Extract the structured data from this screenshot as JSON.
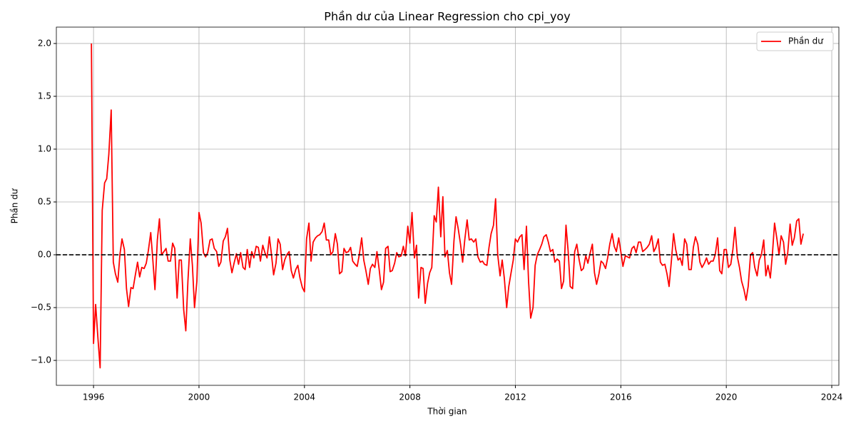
{
  "chart_data": {
    "type": "line",
    "title": "Phần dư của Linear Regression cho cpi_yoy",
    "xlabel": "Thời gian",
    "ylabel": "Phần dư",
    "x": [
      1995.92,
      1996,
      1996.08,
      1996.17,
      1996.25,
      1996.33,
      1996.42,
      1996.5,
      1996.58,
      1996.67,
      1996.75,
      1996.83,
      1996.92,
      1997,
      1997.08,
      1997.17,
      1997.25,
      1997.33,
      1997.42,
      1997.5,
      1997.58,
      1997.67,
      1997.75,
      1997.83,
      1997.92,
      1998,
      1998.08,
      1998.17,
      1998.25,
      1998.33,
      1998.42,
      1998.5,
      1998.58,
      1998.67,
      1998.75,
      1998.83,
      1998.92,
      1999,
      1999.08,
      1999.17,
      1999.25,
      1999.33,
      1999.42,
      1999.5,
      1999.58,
      1999.67,
      1999.75,
      1999.83,
      1999.92,
      2000,
      2000.08,
      2000.17,
      2000.25,
      2000.33,
      2000.42,
      2000.5,
      2000.58,
      2000.67,
      2000.75,
      2000.83,
      2000.92,
      2001,
      2001.08,
      2001.17,
      2001.25,
      2001.33,
      2001.42,
      2001.5,
      2001.58,
      2001.67,
      2001.75,
      2001.83,
      2001.92,
      2002,
      2002.08,
      2002.17,
      2002.25,
      2002.33,
      2002.42,
      2002.5,
      2002.58,
      2002.67,
      2002.75,
      2002.83,
      2002.92,
      2003,
      2003.08,
      2003.17,
      2003.25,
      2003.33,
      2003.42,
      2003.5,
      2003.58,
      2003.67,
      2003.75,
      2003.83,
      2003.92,
      2004,
      2004.08,
      2004.17,
      2004.25,
      2004.33,
      2004.42,
      2004.5,
      2004.58,
      2004.67,
      2004.75,
      2004.83,
      2004.92,
      2005,
      2005.08,
      2005.17,
      2005.25,
      2005.33,
      2005.42,
      2005.5,
      2005.58,
      2005.67,
      2005.75,
      2005.83,
      2005.92,
      2006,
      2006.08,
      2006.17,
      2006.25,
      2006.33,
      2006.42,
      2006.5,
      2006.58,
      2006.67,
      2006.75,
      2006.83,
      2006.92,
      2007,
      2007.08,
      2007.17,
      2007.25,
      2007.33,
      2007.42,
      2007.5,
      2007.58,
      2007.67,
      2007.75,
      2007.83,
      2007.92,
      2008,
      2008.08,
      2008.17,
      2008.25,
      2008.33,
      2008.42,
      2008.5,
      2008.58,
      2008.67,
      2008.75,
      2008.83,
      2008.92,
      2009,
      2009.08,
      2009.17,
      2009.25,
      2009.33,
      2009.42,
      2009.5,
      2009.58,
      2009.67,
      2009.75,
      2009.83,
      2009.92,
      2010,
      2010.08,
      2010.17,
      2010.25,
      2010.33,
      2010.42,
      2010.5,
      2010.58,
      2010.67,
      2010.75,
      2010.83,
      2010.92,
      2011,
      2011.08,
      2011.17,
      2011.25,
      2011.33,
      2011.42,
      2011.5,
      2011.58,
      2011.67,
      2011.75,
      2011.83,
      2011.92,
      2012,
      2012.08,
      2012.17,
      2012.25,
      2012.33,
      2012.42,
      2012.5,
      2012.58,
      2012.67,
      2012.75,
      2012.83,
      2012.92,
      2013,
      2013.08,
      2013.17,
      2013.25,
      2013.33,
      2013.42,
      2013.5,
      2013.58,
      2013.67,
      2013.75,
      2013.83,
      2013.92,
      2014,
      2014.08,
      2014.17,
      2014.25,
      2014.33,
      2014.42,
      2014.5,
      2014.58,
      2014.67,
      2014.75,
      2014.83,
      2014.92,
      2015,
      2015.08,
      2015.17,
      2015.25,
      2015.33,
      2015.42,
      2015.5,
      2015.58,
      2015.67,
      2015.75,
      2015.83,
      2015.92,
      2016,
      2016.08,
      2016.17,
      2016.25,
      2016.33,
      2016.42,
      2016.5,
      2016.58,
      2016.67,
      2016.75,
      2016.83,
      2016.92,
      2017,
      2017.08,
      2017.17,
      2017.25,
      2017.33,
      2017.42,
      2017.5,
      2017.58,
      2017.67,
      2017.75,
      2017.83,
      2017.92,
      2018,
      2018.08,
      2018.17,
      2018.25,
      2018.33,
      2018.42,
      2018.5,
      2018.58,
      2018.67,
      2018.75,
      2018.83,
      2018.92,
      2019,
      2019.08,
      2019.17,
      2019.25,
      2019.33,
      2019.42,
      2019.5,
      2019.58,
      2019.67,
      2019.75,
      2019.83,
      2019.92,
      2020,
      2020.08,
      2020.17,
      2020.25,
      2020.33,
      2020.42,
      2020.5,
      2020.58,
      2020.67,
      2020.75,
      2020.83,
      2020.92,
      2021,
      2021.08,
      2021.17,
      2021.25,
      2021.33,
      2021.42,
      2021.5,
      2021.58,
      2021.67,
      2021.75,
      2021.83,
      2021.92,
      2022,
      2022.08,
      2022.17,
      2022.25,
      2022.33,
      2022.42,
      2022.5,
      2022.58,
      2022.67,
      2022.75,
      2022.83,
      2022.92
    ],
    "series": [
      {
        "name": "Phần dư",
        "color": "#ff0000",
        "values": [
          2.0,
          -0.84,
          -0.47,
          -0.8,
          -1.07,
          0.42,
          0.68,
          0.72,
          0.95,
          1.37,
          -0.07,
          -0.18,
          -0.26,
          0.0,
          0.15,
          0.05,
          -0.32,
          -0.49,
          -0.31,
          -0.32,
          -0.2,
          -0.07,
          -0.21,
          -0.12,
          -0.13,
          -0.08,
          0.04,
          0.21,
          -0.05,
          -0.33,
          0.14,
          0.34,
          0.0,
          0.03,
          0.06,
          -0.06,
          -0.06,
          0.11,
          0.06,
          -0.41,
          -0.05,
          -0.05,
          -0.52,
          -0.72,
          -0.25,
          0.15,
          -0.1,
          -0.5,
          -0.25,
          0.4,
          0.3,
          0.02,
          -0.02,
          0.02,
          0.14,
          0.15,
          0.06,
          0.03,
          -0.11,
          -0.07,
          0.13,
          0.17,
          0.25,
          -0.05,
          -0.17,
          -0.08,
          0.01,
          -0.09,
          0.02,
          -0.12,
          -0.14,
          0.05,
          -0.12,
          0.03,
          -0.03,
          0.08,
          0.07,
          -0.06,
          0.09,
          0.02,
          -0.03,
          0.17,
          0.0,
          -0.19,
          -0.08,
          0.15,
          0.1,
          -0.14,
          -0.05,
          0.0,
          0.03,
          -0.15,
          -0.22,
          -0.14,
          -0.1,
          -0.22,
          -0.31,
          -0.35,
          0.15,
          0.3,
          -0.06,
          0.12,
          0.16,
          0.18,
          0.19,
          0.22,
          0.3,
          0.14,
          0.14,
          0.0,
          0.03,
          0.2,
          0.1,
          -0.18,
          -0.16,
          0.06,
          0.02,
          0.03,
          0.07,
          -0.06,
          -0.09,
          -0.11,
          0.0,
          0.16,
          -0.05,
          -0.15,
          -0.28,
          -0.13,
          -0.09,
          -0.12,
          0.03,
          -0.13,
          -0.33,
          -0.26,
          0.06,
          0.08,
          -0.16,
          -0.15,
          -0.08,
          0.02,
          -0.02,
          -0.01,
          0.08,
          -0.01,
          0.27,
          0.11,
          0.4,
          -0.03,
          0.09,
          -0.41,
          -0.12,
          -0.13,
          -0.46,
          -0.27,
          -0.17,
          -0.12,
          0.37,
          0.31,
          0.64,
          0.17,
          0.55,
          -0.02,
          0.04,
          -0.17,
          -0.28,
          0.13,
          0.36,
          0.25,
          0.1,
          -0.07,
          0.14,
          0.33,
          0.14,
          0.15,
          0.12,
          0.15,
          -0.02,
          -0.07,
          -0.06,
          -0.09,
          -0.1,
          0.07,
          0.2,
          0.28,
          0.53,
          0.0,
          -0.2,
          -0.05,
          -0.22,
          -0.5,
          -0.3,
          -0.18,
          -0.05,
          0.15,
          0.12,
          0.17,
          0.19,
          -0.14,
          0.27,
          -0.25,
          -0.6,
          -0.5,
          -0.1,
          0.0,
          0.05,
          0.1,
          0.17,
          0.19,
          0.12,
          0.03,
          0.05,
          -0.07,
          -0.04,
          -0.06,
          -0.32,
          -0.25,
          0.28,
          0.04,
          -0.3,
          -0.32,
          0.03,
          0.1,
          -0.05,
          -0.15,
          -0.13,
          -0.01,
          -0.08,
          0.01,
          0.1,
          -0.17,
          -0.28,
          -0.18,
          -0.06,
          -0.08,
          -0.13,
          -0.03,
          0.1,
          0.2,
          0.08,
          0.03,
          0.16,
          0.03,
          -0.11,
          -0.01,
          -0.02,
          -0.03,
          0.06,
          0.08,
          0.02,
          0.12,
          0.12,
          0.03,
          0.05,
          0.07,
          0.1,
          0.18,
          0.03,
          0.07,
          0.15,
          -0.07,
          -0.1,
          -0.09,
          -0.18,
          -0.3,
          -0.05,
          0.2,
          0.05,
          -0.05,
          -0.03,
          -0.1,
          0.15,
          0.1,
          -0.14,
          -0.14,
          0.07,
          0.17,
          0.1,
          -0.07,
          -0.12,
          -0.08,
          -0.03,
          -0.09,
          -0.06,
          -0.06,
          0.0,
          0.16,
          -0.15,
          -0.18,
          0.05,
          0.05,
          -0.12,
          -0.09,
          0.05,
          0.26,
          -0.02,
          -0.12,
          -0.25,
          -0.33,
          -0.43,
          -0.3,
          0.0,
          0.02,
          -0.12,
          -0.2,
          -0.05,
          0.0,
          0.14,
          -0.2,
          -0.1,
          -0.22,
          0.01,
          0.3,
          0.15,
          0.0,
          0.18,
          0.12,
          -0.09,
          0.02,
          0.29,
          0.09,
          0.16,
          0.32,
          0.34,
          0.1,
          0.2
        ]
      }
    ],
    "reference_line": {
      "value": 0,
      "color": "#000000",
      "style": "dashed"
    },
    "xlim": [
      1994.59,
      2024.27
    ],
    "ylim": [
      -1.236,
      2.155
    ],
    "xticks": [
      1996,
      2000,
      2004,
      2008,
      2012,
      2016,
      2020,
      2024
    ],
    "yticks": [
      {
        "value": -1,
        "label": "−1.0"
      },
      {
        "value": -0.5,
        "label": "−0.5"
      },
      {
        "value": 0,
        "label": "0.0"
      },
      0.5,
      {
        "value": 1,
        "label": "1.0"
      },
      1.5,
      {
        "value": 2,
        "label": "2.0"
      }
    ],
    "grid": true,
    "legend": "upper right"
  }
}
